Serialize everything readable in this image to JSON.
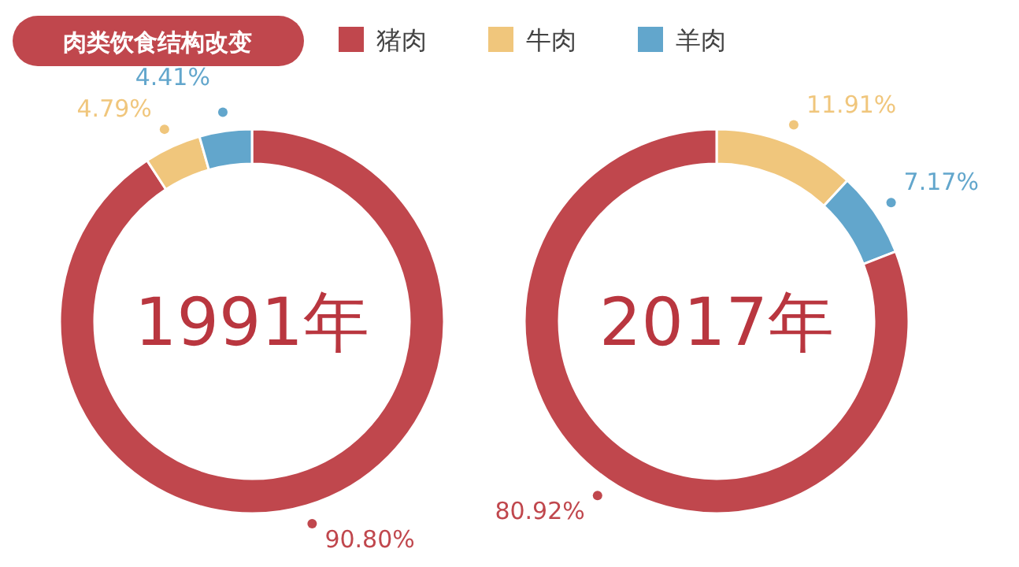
{
  "chart_data": [
    {
      "type": "donut",
      "title": "1991年",
      "annotations": [
        "肉类饮食结构改变"
      ],
      "legend": "top",
      "categories": [
        "猪肉",
        "牛肉",
        "羊肉"
      ],
      "values": [
        90.8,
        4.79,
        4.41
      ],
      "value_labels": [
        "90.80%",
        "4.79%",
        "4.41%"
      ],
      "colors": [
        "#c0474d",
        "#f0c67c",
        "#62a6cc"
      ]
    },
    {
      "type": "donut",
      "title": "2017年",
      "categories": [
        null,
        null,
        null
      ],
      "values": [
        11.91,
        7.17,
        80.92
      ],
      "value_labels": [
        "11.91%",
        "7.17%",
        "80.92%"
      ],
      "colors": [
        "#f0c67c",
        "#62a6cc",
        "#c0474d"
      ]
    }
  ]
}
